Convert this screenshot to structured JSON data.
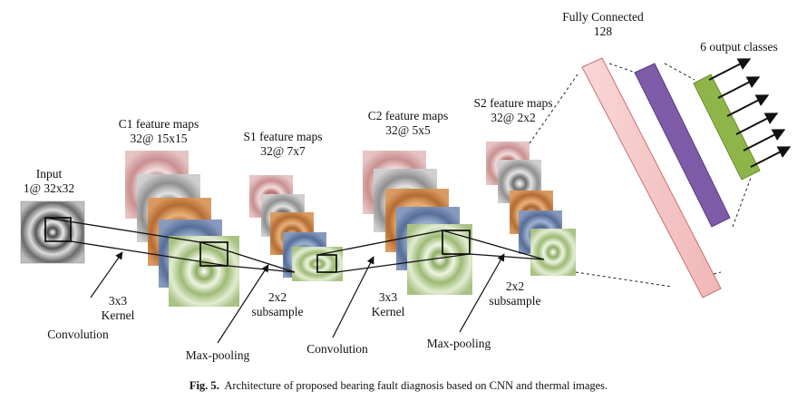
{
  "labels": {
    "input": [
      "Input",
      "1@ 32x32"
    ],
    "c1": [
      "C1 feature maps",
      "32@ 15x15"
    ],
    "s1": [
      "S1 feature maps",
      "32@ 7x7"
    ],
    "c2": [
      "C2 feature maps",
      "32@ 5x5"
    ],
    "s2": [
      "S2 feature maps",
      "32@ 2x2"
    ],
    "fc": [
      "Fully Connected",
      "128"
    ],
    "output": "6 output classes",
    "kernel1": [
      "3x3",
      "Kernel"
    ],
    "convolution1": "Convolution",
    "subsample1": [
      "2x2",
      "subsample"
    ],
    "maxpool1": "Max-pooling",
    "convolution2": "Convolution",
    "kernel2": [
      "3x3",
      "Kernel"
    ],
    "subsample2": [
      "2x2",
      "subsample"
    ],
    "maxpool2": "Max-pooling"
  },
  "caption": {
    "prefix": "Fig. 5.",
    "text": "Architecture of proposed bearing fault diagnosis based on CNN and thermal images."
  },
  "colors": {
    "map_pink": "#c98f8f",
    "map_gray": "#a5a5a5",
    "map_orange": "#cc8445",
    "map_blue": "#5f789e",
    "map_green": "#b6cc94",
    "fc_pink": "#f7c9c9",
    "fc_purple": "#7e5ba6",
    "output_green": "#8db54a"
  }
}
